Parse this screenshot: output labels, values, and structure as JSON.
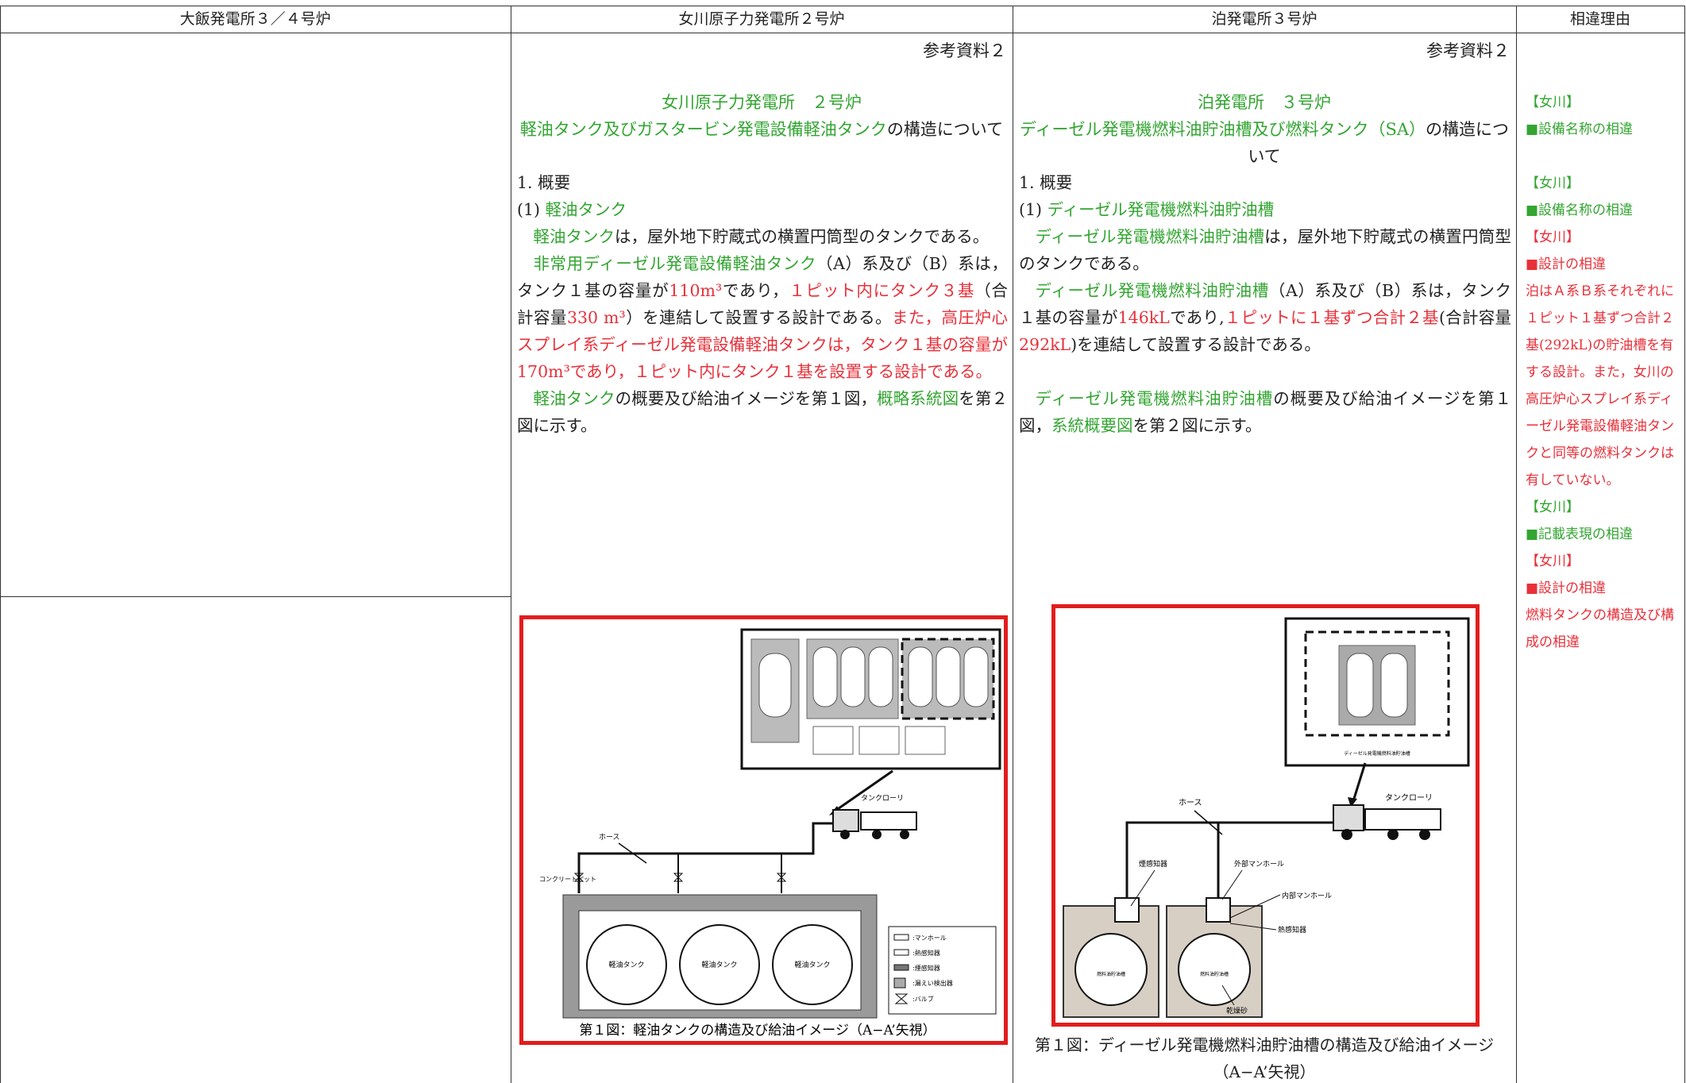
{
  "header": [
    "大飯発電所３／４号炉",
    "女川原子力発電所２号炉",
    "泊発電所３号炉",
    "相違理由"
  ],
  "onagawa": {
    "ref": "参考資料２",
    "title1": "女川原子力発電所　２号炉",
    "title2": [
      {
        "text": "軽油タンク及びガスタービン発電設備軽油タンク",
        "color": "green"
      },
      {
        "text": "の構造について",
        "color": "black"
      }
    ],
    "paragraphs": [
      [
        {
          "text": "1. 概要",
          "color": "black"
        }
      ],
      [
        {
          "text": "(1) ",
          "color": "black"
        },
        {
          "text": "軽油タンク",
          "color": "green"
        }
      ],
      [
        {
          "text": "軽油タンク",
          "color": "green"
        },
        {
          "text": "は，屋外地下貯蔵式の横置円筒型のタンクである。",
          "color": "black"
        }
      ],
      [
        {
          "text": "非常用ディーゼル発電設備軽油タンク",
          "color": "green"
        },
        {
          "text": "（A）系及び（B）系は，タンク１基の容量が",
          "color": "black"
        },
        {
          "text": "110m³",
          "color": "red"
        },
        {
          "text": "であり，",
          "color": "black"
        },
        {
          "text": "１ピット内にタンク３基",
          "color": "red"
        },
        {
          "text": "（合計容量",
          "color": "black"
        },
        {
          "text": "330 m³",
          "color": "red"
        },
        {
          "text": "）を連結して設置する設計である。",
          "color": "black"
        },
        {
          "text": "また，高圧炉心スプレイ系ディーゼル発電設備軽油タンクは，タンク１基の容量が170m³であり，１ピット内にタンク１基を設置する設計である。",
          "color": "red"
        }
      ],
      [
        {
          "text": "軽油タンク",
          "color": "green"
        },
        {
          "text": "の概要及び給油イメージを第１図，",
          "color": "black"
        },
        {
          "text": "概略系統図",
          "color": "green"
        },
        {
          "text": "を第２図に示す。",
          "color": "black"
        }
      ]
    ],
    "figure": {
      "truck": "タンクローリ",
      "hose": "ホース",
      "pit": "コンクリートピット",
      "tanks": [
        "軽油タンク",
        "軽油タンク",
        "軽油タンク"
      ],
      "legend": [
        ":マンホール",
        ":熱感知器",
        ":煙感知器",
        ":漏えい検出器",
        ":バルブ"
      ],
      "caption": "第１図：軽油タンクの構造及び給油イメージ（A−A’矢視）"
    }
  },
  "tomari": {
    "ref": "参考資料２",
    "title1": "泊発電所　３号炉",
    "title2": [
      {
        "text": "ディーゼル発電機燃料油貯油槽及び燃料タンク（SA）",
        "color": "green"
      },
      {
        "text": "の構造について",
        "color": "black"
      }
    ],
    "paragraphs": [
      [
        {
          "text": "1. 概要",
          "color": "black"
        }
      ],
      [
        {
          "text": "(1) ",
          "color": "black"
        },
        {
          "text": "ディーゼル発電機燃料油貯油槽",
          "color": "green"
        }
      ],
      [
        {
          "text": "ディーゼル発電機燃料油貯油槽",
          "color": "green"
        },
        {
          "text": "は，屋外地下貯蔵式の横置円筒型のタンクである。",
          "color": "black"
        }
      ],
      [
        {
          "text": "ディーゼル発電機燃料油貯油槽",
          "color": "green"
        },
        {
          "text": "（A）系及び（B）系は，タンク１基の容量が",
          "color": "black"
        },
        {
          "text": "146kL",
          "color": "red"
        },
        {
          "text": "であり,",
          "color": "black"
        },
        {
          "text": "１ピットに１基ずつ合計２基",
          "color": "red"
        },
        {
          "text": "(合計容量",
          "color": "black"
        },
        {
          "text": "292kL",
          "color": "red"
        },
        {
          "text": ")を連結して設置する設計である。",
          "color": "black"
        }
      ],
      [
        {
          "text": "ディーゼル発電機燃料油貯油槽",
          "color": "green"
        },
        {
          "text": "の概要及び給油イメージを第１図，",
          "color": "black"
        },
        {
          "text": "系統概要図",
          "color": "green"
        },
        {
          "text": "を第２図に示す。",
          "color": "black"
        }
      ]
    ],
    "figure": {
      "plan": "ディーゼル発電機燃料油貯油槽",
      "truck": "タンクローリ",
      "hose": "ホース",
      "smoke": "煙感知器",
      "outer": "外部マンホール",
      "inner": "内部マンホール",
      "heat": "熱感知器",
      "sand": "乾燥砂",
      "tanks": [
        "燃料油貯油槽",
        "燃料油貯油槽"
      ],
      "caption": [
        "第１図：ディーゼル発電機燃料油貯油槽の構造及び給油イメージ",
        "（A−A’矢視）"
      ]
    }
  },
  "reasons": [
    [
      {
        "text": "【女川】",
        "color": "green"
      },
      {
        "text": "■設備名称の相違",
        "color": "green"
      }
    ],
    [
      {
        "text": "【女川】",
        "color": "green"
      },
      {
        "text": "■設備名称の相違",
        "color": "green"
      },
      {
        "text": "【女川】",
        "color": "red"
      },
      {
        "text": "■設計の相違",
        "color": "red"
      },
      {
        "text": "泊はＡ系Ｂ系それぞれに１ピット１基ずつ合計２基(292kL)の貯油槽を有する設計。また，女川の高圧炉心スプレイ系ディーゼル発電設備軽油タンクと同等の燃料タンクは有していない。",
        "color": "red"
      },
      {
        "text": "【女川】",
        "color": "green"
      },
      {
        "text": "■記載表現の相違",
        "color": "green"
      },
      {
        "text": "【女川】",
        "color": "red"
      },
      {
        "text": "■設計の相違",
        "color": "red"
      },
      {
        "text": "燃料タンクの構造及び構成の相違",
        "color": "red"
      }
    ]
  ]
}
